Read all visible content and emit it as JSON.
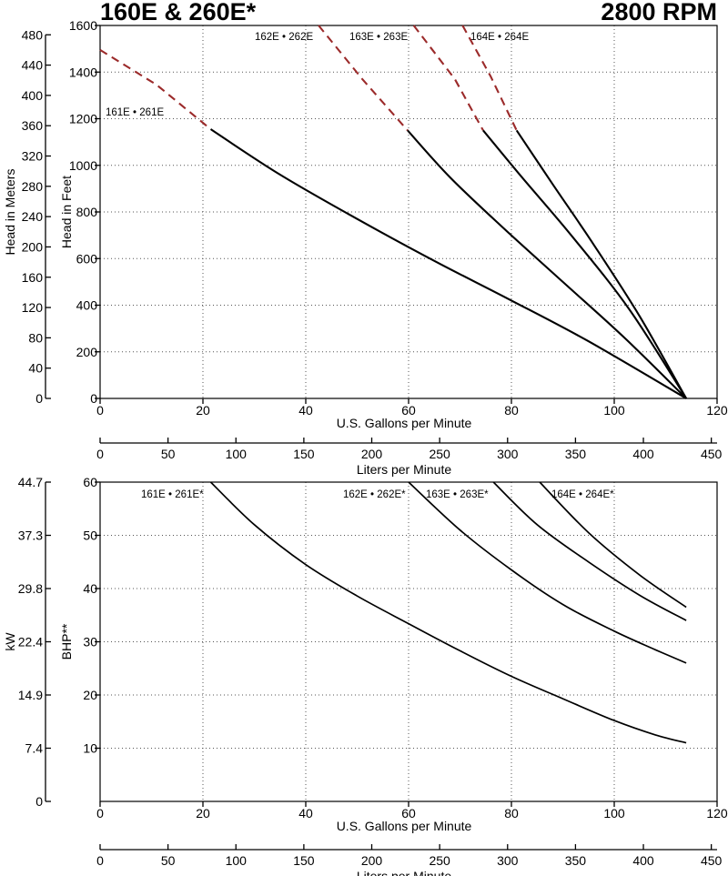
{
  "title_left": "160E & 260E*",
  "title_right": "2800 RPM",
  "colors": {
    "solid_curve": "#000000",
    "extended_curve": "#9b2a2a",
    "grid": "#555555"
  },
  "chart_data": [
    {
      "type": "line",
      "name_key": "head",
      "xlabel": "U.S. Gallons per Minute",
      "ylabel": "Head in Feet",
      "ylabel_secondary": "Head in Meters",
      "xlabel_secondary": "Liters per Minute",
      "xlim": [
        0,
        120
      ],
      "ylim": [
        0,
        1600
      ],
      "x_ticks": [
        0,
        20,
        40,
        60,
        80,
        100,
        120
      ],
      "y_ticks": [
        0,
        200,
        400,
        600,
        800,
        1000,
        1200,
        1400,
        1600
      ],
      "secondary_y_ticks": [
        0,
        40,
        80,
        120,
        160,
        200,
        240,
        280,
        320,
        360,
        400,
        440,
        480
      ],
      "secondary_x_ticks": [
        0,
        50,
        100,
        150,
        200,
        250,
        300,
        350,
        400,
        450
      ],
      "grid": true,
      "series": [
        {
          "name": "161E • 261E",
          "dashed": {
            "x": [
              0,
              11,
              21.5
            ],
            "y": [
              1495,
              1345,
              1155
            ]
          },
          "solid": {
            "x": [
              21.5,
              35,
              50,
              65,
              80,
              95,
              114
            ],
            "y": [
              1155,
              960,
              770,
              590,
              420,
              245,
              0
            ]
          }
        },
        {
          "name": "162E • 262E",
          "dashed": {
            "x": [
              42.5,
              51,
              59.8
            ],
            "y": [
              1600,
              1370,
              1150
            ]
          },
          "solid": {
            "x": [
              59.8,
              68,
              78,
              90,
              102,
              114
            ],
            "y": [
              1150,
              950,
              740,
              500,
              260,
              0
            ]
          }
        },
        {
          "name": "163E • 263E",
          "dashed": {
            "x": [
              61,
              69,
              74.5
            ],
            "y": [
              1600,
              1370,
              1150
            ]
          },
          "solid": {
            "x": [
              74.5,
              82,
              92,
              103,
              114
            ],
            "y": [
              1150,
              950,
              690,
              380,
              0
            ]
          }
        },
        {
          "name": "164E • 264E",
          "dashed": {
            "x": [
              70.5,
              76,
              81
            ],
            "y": [
              1600,
              1380,
              1150
            ]
          },
          "solid": {
            "x": [
              81,
              88,
              96,
              105,
              114
            ],
            "y": [
              1150,
              920,
              660,
              350,
              0
            ]
          }
        }
      ]
    },
    {
      "type": "line",
      "name_key": "power",
      "xlabel": "U.S. Gallons per Minute",
      "ylabel": "BHP**",
      "ylabel_secondary": "kW",
      "xlabel_secondary": "Liters per Minute",
      "xlim": [
        0,
        120
      ],
      "ylim": [
        0,
        60
      ],
      "x_ticks": [
        0,
        20,
        40,
        60,
        80,
        100,
        120
      ],
      "y_ticks": [
        10,
        20,
        30,
        40,
        50,
        60
      ],
      "secondary_y_ticks": [
        "0",
        "7.4",
        "14.9",
        "22.4",
        "29.8",
        "37.3",
        "44.7"
      ],
      "secondary_x_ticks": [
        0,
        50,
        100,
        150,
        200,
        250,
        300,
        350,
        400,
        450
      ],
      "grid": true,
      "series": [
        {
          "name": "161E • 261E*",
          "x": [
            21.5,
            30,
            40,
            50,
            60,
            70,
            80,
            90,
            100,
            108,
            114
          ],
          "y": [
            60,
            52,
            44.5,
            38.6,
            33.4,
            28.3,
            23.5,
            19.3,
            15.2,
            12.5,
            11
          ]
        },
        {
          "name": "162E • 262E*",
          "x": [
            60,
            70,
            80,
            90,
            100,
            108,
            114
          ],
          "y": [
            60,
            51,
            43.5,
            37,
            32,
            28.5,
            26
          ]
        },
        {
          "name": "163E • 263E*",
          "x": [
            76.5,
            85,
            95,
            105,
            114
          ],
          "y": [
            60,
            52,
            45,
            38.7,
            34
          ]
        },
        {
          "name": "164E • 264E*",
          "x": [
            85.5,
            95,
            105,
            114
          ],
          "y": [
            60,
            50.5,
            42.5,
            36.5
          ]
        }
      ]
    }
  ]
}
